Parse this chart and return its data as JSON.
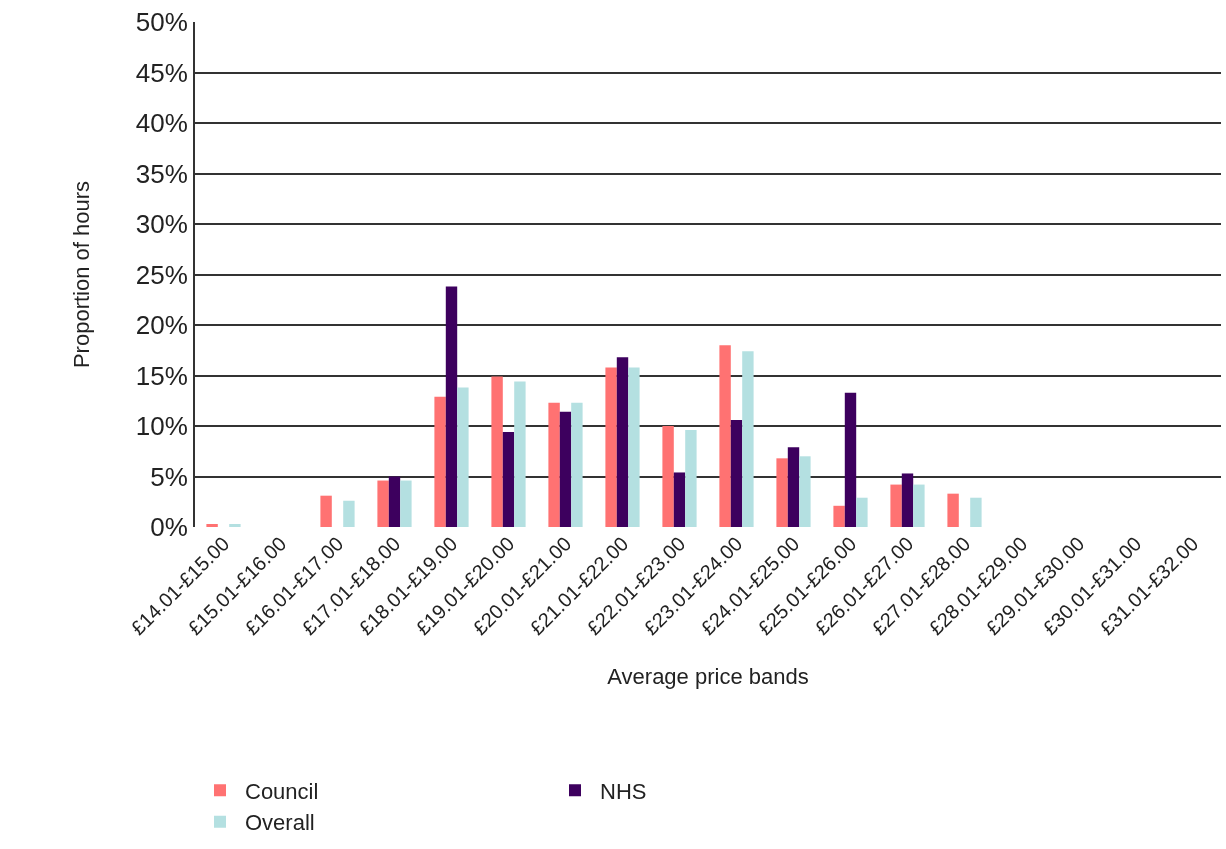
{
  "chart_data": {
    "type": "bar",
    "xlabel": "Average price bands",
    "ylabel": "Proportion of hours",
    "categories": [
      "£14.01-£15.00",
      "£15.01-£16.00",
      "£16.01-£17.00",
      "£17.01-£18.00",
      "£18.01-£19.00",
      "£19.01-£20.00",
      "£20.01-£21.00",
      "£21.01-£22.00",
      "£22.01-£23.00",
      "£23.01-£24.00",
      "£24.01-£25.00",
      "£25.01-£26.00",
      "£26.01-£27.00",
      "£27.01-£28.00",
      "£28.01-£29.00",
      "£29.01-£30.00",
      "£30.01-£31.00",
      "£31.01-£32.00"
    ],
    "series": [
      {
        "name": "Council",
        "color": "#ff7272",
        "values": [
          0.3,
          0,
          3.1,
          4.6,
          12.9,
          14.9,
          12.3,
          15.8,
          10.0,
          18.0,
          6.8,
          2.1,
          4.2,
          3.3,
          0,
          0,
          0,
          0
        ]
      },
      {
        "name": "NHS",
        "color": "#3d005e",
        "values": [
          0,
          0,
          0,
          5.0,
          23.8,
          9.4,
          11.4,
          16.8,
          5.4,
          10.6,
          7.9,
          13.3,
          5.3,
          0,
          0,
          0,
          0,
          0
        ]
      },
      {
        "name": "Overall",
        "color": "#b4e0e1",
        "values": [
          0.3,
          0,
          2.6,
          4.6,
          13.8,
          14.4,
          12.3,
          15.8,
          9.6,
          17.4,
          7.0,
          2.9,
          4.2,
          2.9,
          0,
          0,
          0,
          0
        ]
      }
    ],
    "ylim": [
      0,
      50
    ],
    "yticks": [
      {
        "value": 0,
        "label": "0%"
      },
      {
        "value": 5,
        "label": "5%"
      },
      {
        "value": 10,
        "label": "10%"
      },
      {
        "value": 15,
        "label": "15%"
      },
      {
        "value": 20,
        "label": "20%"
      },
      {
        "value": 25,
        "label": "25%"
      },
      {
        "value": 30,
        "label": "30%"
      },
      {
        "value": 35,
        "label": "35%"
      },
      {
        "value": 40,
        "label": "40%"
      },
      {
        "value": 45,
        "label": "45%"
      },
      {
        "value": 50,
        "label": "50%"
      }
    ],
    "grid": "y",
    "legend": "bottom"
  }
}
